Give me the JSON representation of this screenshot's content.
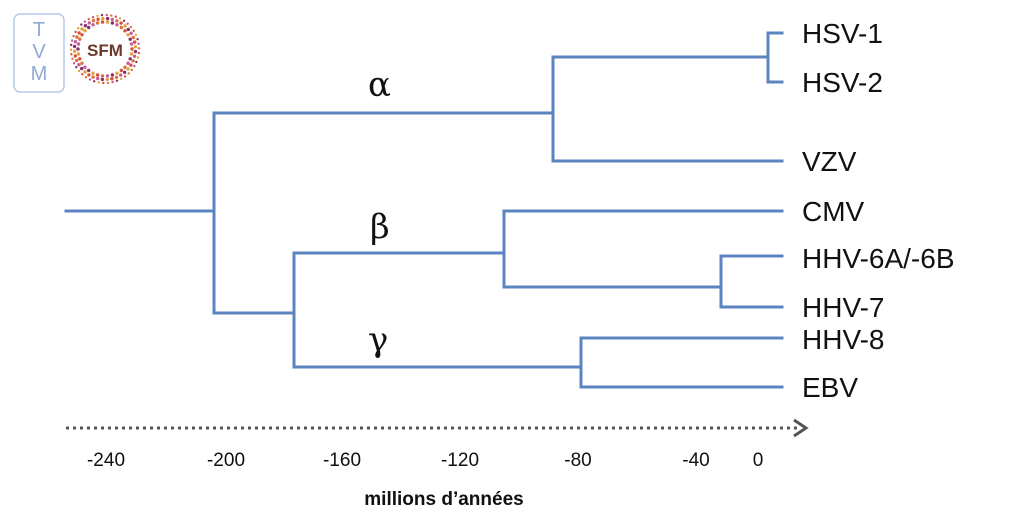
{
  "logos": {
    "left": {
      "letters": [
        "T",
        "V",
        "M"
      ],
      "color": "#8ea9d6"
    },
    "right": {
      "text": "SFM",
      "ring_colors": [
        "#d94f3a",
        "#e3a33a",
        "#8b2f6b",
        "#c85a9e",
        "#d8743a"
      ]
    }
  },
  "clades": {
    "alpha": "α",
    "beta": "β",
    "gamma": "γ"
  },
  "leaves": {
    "hsv1": "HSV-1",
    "hsv2": "HSV-2",
    "vzv": "VZV",
    "cmv": "CMV",
    "hhv6": "HHV-6A/-6B",
    "hhv7": "HHV-7",
    "hhv8": "HHV-8",
    "ebv": "EBV"
  },
  "axis": {
    "title": "millions d’années",
    "ticks": [
      "-240",
      "-200",
      "-160",
      "-120",
      "-80",
      "-40",
      "0"
    ]
  },
  "colors": {
    "branch": "#5b84c0",
    "axis": "#555555",
    "text": "#111111"
  }
}
